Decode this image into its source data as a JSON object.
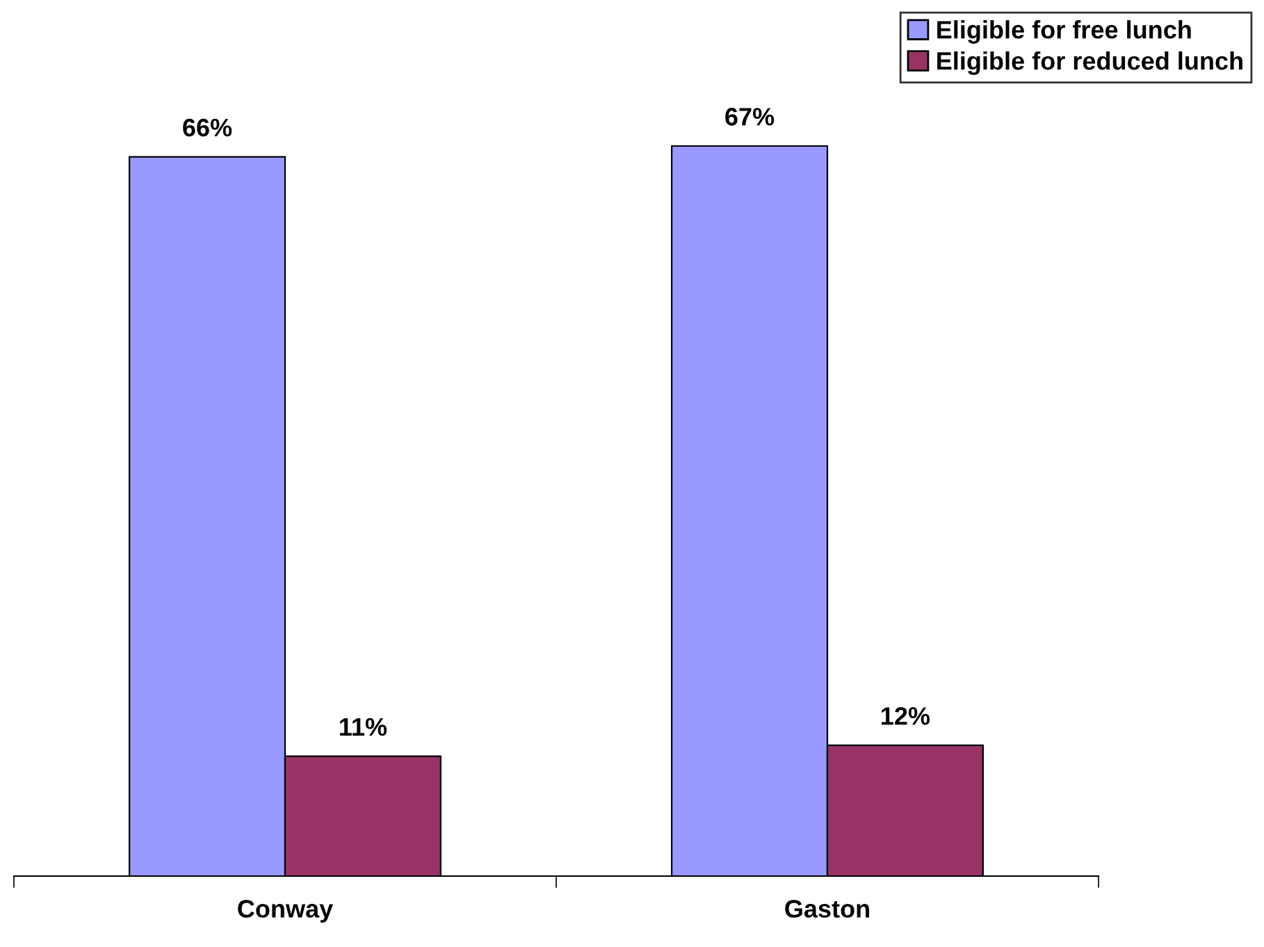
{
  "chart_data": {
    "type": "bar",
    "categories": [
      "Conway",
      "Gaston"
    ],
    "series": [
      {
        "name": "Eligible for free lunch",
        "color": "#9999ff",
        "values": [
          66,
          67
        ],
        "value_labels": [
          "66%",
          "67%"
        ]
      },
      {
        "name": "Eligible for reduced lunch",
        "color": "#993366",
        "values": [
          11,
          12
        ],
        "value_labels": [
          "11%",
          "12%"
        ]
      }
    ],
    "legend": "top right",
    "grid": false
  }
}
